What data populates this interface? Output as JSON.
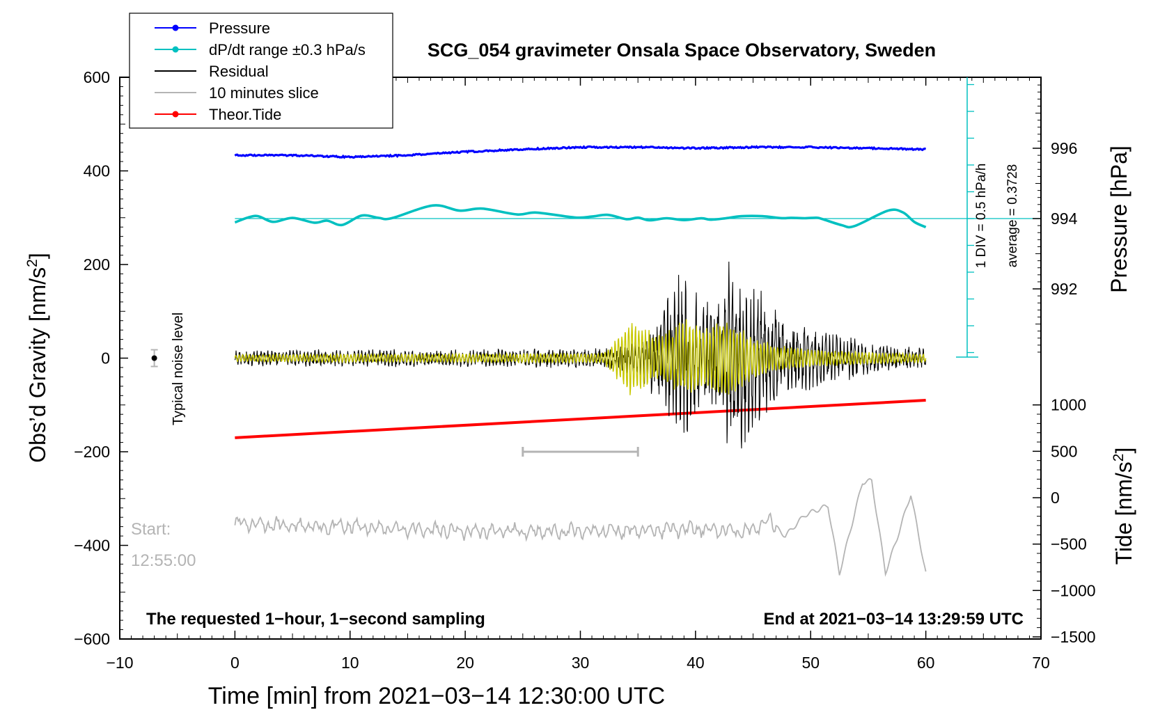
{
  "chart_data": {
    "type": "line",
    "title": "SCG_054 gravimeter Onsala Space Observatory, Sweden",
    "xlabel": "Time [min] from 2021−03−14 12:30:00 UTC",
    "ylabel": "Obs’d Gravity [nm/s",
    "ylabel_sup": "2",
    "ylabel_close": "]",
    "pressure_label": "Pressure [hPa]",
    "tide_label": "Tide [nm/s",
    "tide_label_sup": "2",
    "tide_label_close": "]",
    "xlim": [
      -10,
      70
    ],
    "ylim": [
      -600,
      600
    ],
    "pressure_lim": [
      990,
      998
    ],
    "tide_lim": [
      -1500,
      1000
    ],
    "x_ticks": [
      "−10",
      "0",
      "10",
      "20",
      "30",
      "40",
      "50",
      "60",
      "70"
    ],
    "y_ticks": [
      "−600",
      "−400",
      "−200",
      "0",
      "200",
      "400",
      "600"
    ],
    "pressure_ticks": [
      "992",
      "994",
      "996"
    ],
    "tide_ticks": [
      "1000",
      "500",
      "0",
      "−500",
      "−1000",
      "−1500"
    ],
    "legend": [
      {
        "label": "Pressure",
        "color": "#0000ff",
        "marker": true
      },
      {
        "label": "dP/dt range ±0.3 hPa/s",
        "color": "#00c0c0",
        "marker": true
      },
      {
        "label": "Residual",
        "color": "#000000",
        "marker": false
      },
      {
        "label": "10 minutes slice",
        "color": "#b4b4b4",
        "marker": false
      },
      {
        "label": "Theor.Tide",
        "color": "#ff0000",
        "marker": true
      }
    ],
    "annotations": {
      "noise_label": "Typical noise level",
      "start_label": "Start:",
      "start_time": "12:55:00",
      "div_label": "1 DIV = 0.5 hPa/h",
      "avg_label": "average = 0.3728",
      "bottom_left": "The requested 1−hour, 1−second sampling",
      "bottom_right": "End at 2021−03−14 13:29:59 UTC"
    },
    "series": [
      {
        "name": "Pressure",
        "unit": "hPa",
        "color": "#0000ff",
        "x": [
          0,
          5,
          10,
          15,
          20,
          25,
          30,
          35,
          40,
          45,
          50,
          55,
          60
        ],
        "values": [
          995.8,
          995.8,
          995.75,
          995.8,
          995.9,
          995.97,
          996.03,
          996.03,
          996.0,
          996.03,
          996.03,
          996.0,
          995.97
        ]
      },
      {
        "name": "dP/dt",
        "unit": "hPa/h (1 DIV = 0.5, centred on average 0.3728)",
        "color": "#00c0c0",
        "x": [
          0,
          1.8,
          3.3,
          5,
          6.9,
          8,
          9.3,
          11,
          12.5,
          13.6,
          17.2,
          19.5,
          21.5,
          24.5,
          26.2,
          29.5,
          31,
          32.4,
          34,
          35,
          36,
          37.5,
          39,
          40.5,
          41.3,
          42.5,
          44,
          45.8,
          47.5,
          48.3,
          49.5,
          50.5,
          51,
          52.7,
          53.8,
          56.7,
          58,
          59,
          60
        ],
        "values": [
          0.302,
          0.422,
          0.312,
          0.385,
          0.296,
          0.334,
          0.253,
          0.428,
          0.386,
          0.379,
          0.617,
          0.521,
          0.558,
          0.45,
          0.485,
          0.393,
          0.41,
          0.442,
          0.361,
          0.39,
          0.34,
          0.379,
          0.344,
          0.378,
          0.352,
          0.375,
          0.417,
          0.417,
          0.38,
          0.387,
          0.379,
          0.389,
          0.365,
          0.25,
          0.232,
          0.52,
          0.49,
          0.31,
          0.212
        ]
      },
      {
        "name": "Residual",
        "unit": "nm/s^2",
        "color": "#000000",
        "envelope_x": [
          0,
          10,
          20,
          32,
          35,
          37,
          39,
          40.5,
          42,
          43,
          44.5,
          46,
          48,
          50,
          52,
          55,
          60
        ],
        "envelope_amp": [
          18,
          20,
          20,
          22,
          40,
          110,
          210,
          130,
          150,
          215,
          190,
          135,
          80,
          75,
          60,
          35,
          22
        ]
      },
      {
        "name": "Residual (filtered)",
        "unit": "nm/s^2",
        "color": "#c8c800",
        "envelope_x": [
          0,
          10,
          20,
          32,
          33.5,
          34.3,
          35.5,
          37,
          38.5,
          39.5,
          40.5,
          41.5,
          42.5,
          43.5,
          45,
          47,
          50,
          55,
          60
        ],
        "envelope_amp": [
          8,
          10,
          10,
          12,
          60,
          100,
          75,
          50,
          80,
          95,
          70,
          80,
          95,
          80,
          50,
          30,
          20,
          14,
          10
        ]
      },
      {
        "name": "10 minutes slice",
        "unit": "nm/s^2",
        "color": "#b4b4b4",
        "x_range": [
          25,
          35
        ]
      },
      {
        "name": "Theor.Tide",
        "unit": "nm/s^2",
        "color": "#ff0000",
        "x": [
          0,
          60
        ],
        "values": [
          -170,
          -90
        ]
      },
      {
        "name": "Residual slice (stretched, from 12:55:00)",
        "unit": "nm/s^2",
        "color": "#b4b4b4",
        "x": [
          0,
          5,
          10,
          20,
          30,
          40,
          44.5,
          46.5,
          47.8,
          49.5,
          51.5,
          52.5,
          54.5,
          55.3,
          56.5,
          57.5,
          58.7,
          60
        ],
        "values": [
          -350,
          -360,
          -360,
          -370,
          -370,
          -365,
          -370,
          -350,
          -380,
          -335,
          -315,
          -460,
          -265,
          -262,
          -458,
          -385,
          -290,
          -460
        ]
      }
    ]
  }
}
